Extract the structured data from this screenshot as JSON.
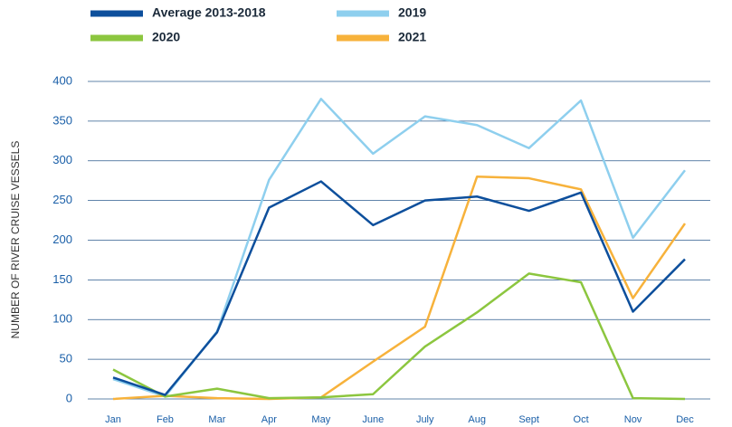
{
  "chart_data": {
    "type": "line",
    "y_label": "NUMBER OF RIVER CRUISE VESSELS",
    "categories": [
      "Jan",
      "Feb",
      "Mar",
      "Apr",
      "May",
      "June",
      "July",
      "Aug",
      "Sept",
      "Oct",
      "Nov",
      "Dec"
    ],
    "series": [
      {
        "name": "Average 2013-2018",
        "color": "#0d4f9c",
        "values": [
          27,
          5,
          84,
          241,
          274,
          219,
          250,
          255,
          237,
          260,
          110,
          176
        ]
      },
      {
        "name": "2019",
        "color": "#8ecfee",
        "values": [
          25,
          3,
          85,
          276,
          378,
          309,
          356,
          345,
          316,
          376,
          203,
          288
        ]
      },
      {
        "name": "2020",
        "color": "#8cc63f",
        "values": [
          37,
          3,
          13,
          1,
          2,
          6,
          66,
          109,
          158,
          147,
          1,
          0
        ]
      },
      {
        "name": "2021",
        "color": "#f7b23b",
        "values": [
          0,
          4,
          1,
          0,
          2,
          47,
          91,
          280,
          278,
          264,
          127,
          221
        ]
      }
    ],
    "ylim": [
      0,
      400
    ],
    "yticks": [
      0,
      50,
      100,
      150,
      200,
      250,
      300,
      350,
      400
    ],
    "grid": true
  }
}
